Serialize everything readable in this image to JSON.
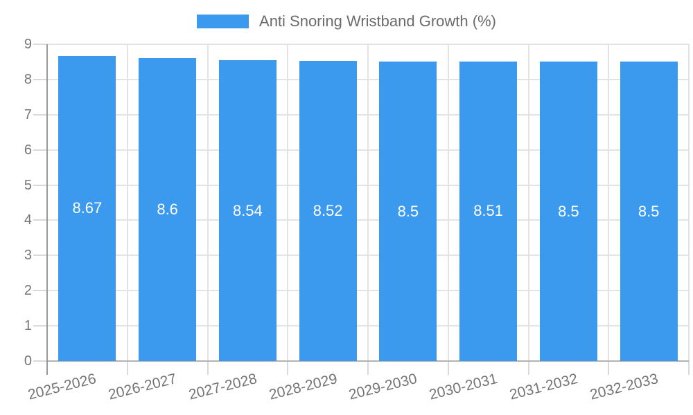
{
  "chart_data": {
    "type": "bar",
    "title": "",
    "legend": {
      "label": "Anti Snoring Wristband Growth (%)",
      "position": "top"
    },
    "categories": [
      "2025-2026",
      "2026-2027",
      "2027-2028",
      "2028-2029",
      "2029-2030",
      "2030-2031",
      "2031-2032",
      "2032-2033"
    ],
    "values": [
      8.67,
      8.6,
      8.54,
      8.52,
      8.5,
      8.51,
      8.5,
      8.5
    ],
    "value_labels": [
      "8.67",
      "8.6",
      "8.54",
      "8.52",
      "8.5",
      "8.51",
      "8.5",
      "8.5"
    ],
    "ylim": [
      0,
      9
    ],
    "yticks": [
      "0",
      "1",
      "2",
      "3",
      "4",
      "5",
      "6",
      "7",
      "8",
      "9"
    ],
    "grid": true,
    "legend_position": "top",
    "colors": {
      "bar": "#3B99EE",
      "bar_label": "#FFFFFF",
      "axis_text": "#757575",
      "legend_text": "#6B6B6B",
      "gridline": "#E3E3E3",
      "tick": "#D9D9D9",
      "axis_line": "#9A9A9A",
      "baseline": "#B3B3B3"
    }
  }
}
